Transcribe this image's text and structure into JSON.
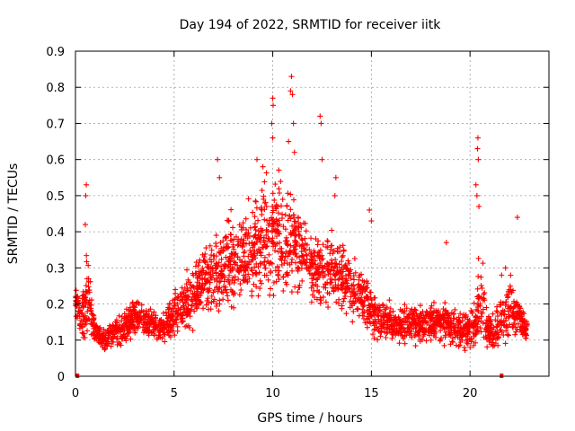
{
  "chart_data": {
    "type": "scatter",
    "title": "Day 194 of 2022, SRMTID for receiver iitk",
    "xlabel": "GPS time / hours",
    "ylabel": "SRMTID / TECUs",
    "xlim": [
      0,
      24
    ],
    "ylim": [
      0,
      0.9
    ],
    "xticks": [
      0,
      5,
      10,
      15,
      20
    ],
    "yticks": [
      0,
      0.1,
      0.2,
      0.3,
      0.4,
      0.5,
      0.6,
      0.7,
      0.8,
      0.9
    ],
    "xtick_labels": [
      "0",
      "5",
      "10",
      "15",
      "20"
    ],
    "ytick_labels": [
      "0",
      "0.1",
      "0.2",
      "0.3",
      "0.4",
      "0.5",
      "0.6",
      "0.7",
      "0.8",
      "0.9"
    ],
    "grid": true,
    "marker": "+",
    "color": "#ff0000",
    "series": [
      {
        "name": "SRMTID",
        "profile": {
          "x": [
            0.0,
            0.3,
            0.5,
            0.7,
            1.0,
            1.5,
            2.0,
            2.5,
            3.0,
            3.5,
            4.0,
            4.5,
            5.0,
            5.5,
            6.0,
            6.5,
            7.0,
            7.5,
            8.0,
            8.5,
            9.0,
            9.5,
            10.0,
            10.5,
            11.0,
            11.5,
            12.0,
            12.5,
            13.0,
            13.5,
            14.0,
            14.5,
            15.0,
            15.5,
            16.0,
            16.5,
            17.0,
            17.5,
            18.0,
            18.5,
            19.0,
            19.5,
            20.0,
            20.3,
            20.5,
            20.8,
            21.0,
            21.5,
            22.0,
            22.5,
            22.9
          ],
          "median": [
            0.22,
            0.15,
            0.2,
            0.22,
            0.12,
            0.1,
            0.12,
            0.13,
            0.17,
            0.15,
            0.14,
            0.13,
            0.18,
            0.2,
            0.22,
            0.27,
            0.28,
            0.3,
            0.32,
            0.33,
            0.35,
            0.38,
            0.4,
            0.38,
            0.37,
            0.33,
            0.3,
            0.28,
            0.3,
            0.28,
            0.25,
            0.22,
            0.18,
            0.16,
            0.15,
            0.14,
            0.15,
            0.14,
            0.16,
            0.15,
            0.14,
            0.13,
            0.12,
            0.15,
            0.25,
            0.14,
            0.12,
            0.15,
            0.2,
            0.16,
            0.12
          ],
          "spread": [
            0.05,
            0.04,
            0.12,
            0.1,
            0.03,
            0.03,
            0.04,
            0.04,
            0.05,
            0.04,
            0.04,
            0.04,
            0.06,
            0.08,
            0.08,
            0.08,
            0.1,
            0.12,
            0.12,
            0.12,
            0.12,
            0.14,
            0.16,
            0.15,
            0.14,
            0.12,
            0.1,
            0.1,
            0.09,
            0.09,
            0.08,
            0.07,
            0.06,
            0.05,
            0.05,
            0.05,
            0.05,
            0.05,
            0.06,
            0.05,
            0.05,
            0.05,
            0.05,
            0.08,
            0.15,
            0.06,
            0.05,
            0.06,
            0.08,
            0.05,
            0.03
          ]
        },
        "peaks": [
          {
            "x": 0.55,
            "y": 0.53
          },
          {
            "x": 0.52,
            "y": 0.5
          },
          {
            "x": 0.5,
            "y": 0.42
          },
          {
            "x": 7.2,
            "y": 0.6
          },
          {
            "x": 7.3,
            "y": 0.55
          },
          {
            "x": 9.2,
            "y": 0.6
          },
          {
            "x": 9.5,
            "y": 0.58
          },
          {
            "x": 10.0,
            "y": 0.77
          },
          {
            "x": 10.02,
            "y": 0.75
          },
          {
            "x": 9.95,
            "y": 0.7
          },
          {
            "x": 10.0,
            "y": 0.66
          },
          {
            "x": 10.95,
            "y": 0.83
          },
          {
            "x": 10.9,
            "y": 0.79
          },
          {
            "x": 11.0,
            "y": 0.78
          },
          {
            "x": 11.05,
            "y": 0.7
          },
          {
            "x": 10.8,
            "y": 0.65
          },
          {
            "x": 11.1,
            "y": 0.62
          },
          {
            "x": 12.4,
            "y": 0.72
          },
          {
            "x": 12.45,
            "y": 0.7
          },
          {
            "x": 12.5,
            "y": 0.6
          },
          {
            "x": 13.2,
            "y": 0.55
          },
          {
            "x": 13.15,
            "y": 0.5
          },
          {
            "x": 14.9,
            "y": 0.46
          },
          {
            "x": 15.0,
            "y": 0.43
          },
          {
            "x": 18.8,
            "y": 0.37
          },
          {
            "x": 20.4,
            "y": 0.66
          },
          {
            "x": 20.38,
            "y": 0.63
          },
          {
            "x": 20.42,
            "y": 0.6
          },
          {
            "x": 20.3,
            "y": 0.53
          },
          {
            "x": 20.35,
            "y": 0.5
          },
          {
            "x": 20.45,
            "y": 0.47
          },
          {
            "x": 21.8,
            "y": 0.3
          },
          {
            "x": 21.6,
            "y": 0.28
          },
          {
            "x": 22.4,
            "y": 0.44
          }
        ],
        "baseline_points": [
          {
            "x": 0.1,
            "y": 0.0
          },
          {
            "x": 21.6,
            "y": 0.0
          }
        ]
      }
    ]
  }
}
